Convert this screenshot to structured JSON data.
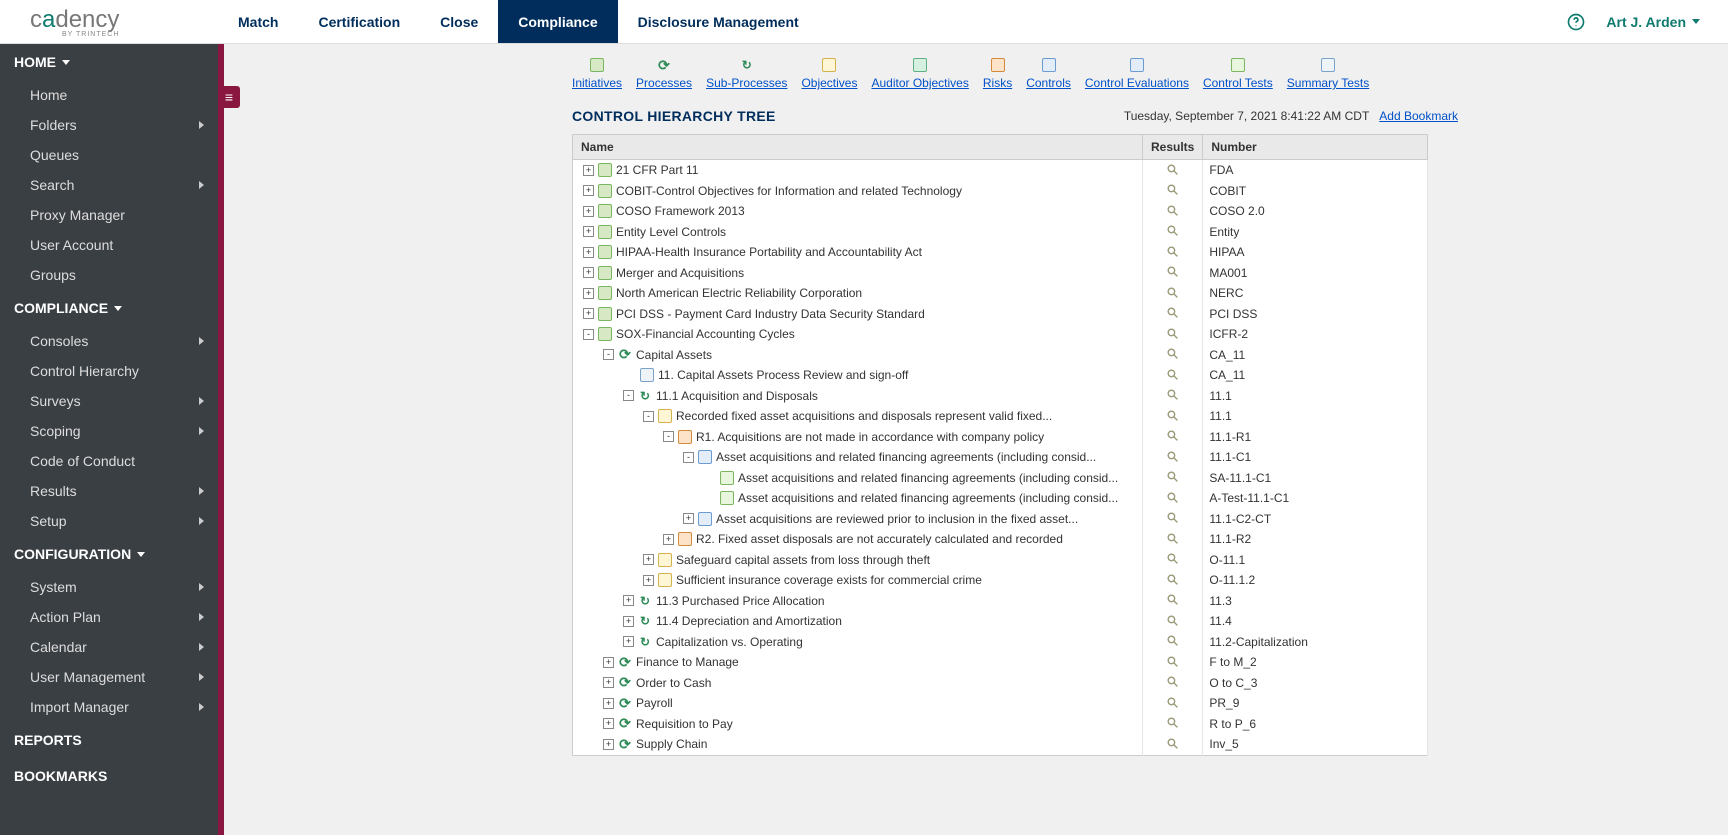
{
  "brand": {
    "name": "cadency",
    "byline": "BY TRINTECH"
  },
  "topnav": {
    "tabs": [
      "Match",
      "Certification",
      "Close",
      "Compliance",
      "Disclosure Management"
    ],
    "active_index": 3,
    "user_name": "Art J. Arden"
  },
  "sidebar": {
    "sections": [
      {
        "title": "HOME",
        "expanded": true,
        "items": [
          {
            "label": "Home",
            "chev": false
          },
          {
            "label": "Folders",
            "chev": true
          },
          {
            "label": "Queues",
            "chev": false
          },
          {
            "label": "Search",
            "chev": true
          },
          {
            "label": "Proxy Manager",
            "chev": false
          },
          {
            "label": "User Account",
            "chev": false
          },
          {
            "label": "Groups",
            "chev": false
          }
        ]
      },
      {
        "title": "COMPLIANCE",
        "expanded": true,
        "items": [
          {
            "label": "Consoles",
            "chev": true
          },
          {
            "label": "Control Hierarchy",
            "chev": false
          },
          {
            "label": "Surveys",
            "chev": true
          },
          {
            "label": "Scoping",
            "chev": true
          },
          {
            "label": "Code of Conduct",
            "chev": false
          },
          {
            "label": "Results",
            "chev": true
          },
          {
            "label": "Setup",
            "chev": true
          }
        ]
      },
      {
        "title": "CONFIGURATION",
        "expanded": true,
        "items": [
          {
            "label": "System",
            "chev": true
          },
          {
            "label": "Action Plan",
            "chev": true
          },
          {
            "label": "Calendar",
            "chev": true
          },
          {
            "label": "User Management",
            "chev": true
          },
          {
            "label": "Import Manager",
            "chev": true
          }
        ]
      },
      {
        "title": "REPORTS",
        "expanded": false,
        "items": []
      },
      {
        "title": "BOOKMARKS",
        "expanded": false,
        "items": []
      }
    ]
  },
  "toolbar": [
    {
      "label": "Initiatives",
      "icon": "init"
    },
    {
      "label": "Processes",
      "icon": "proc"
    },
    {
      "label": "Sub-Processes",
      "icon": "sub"
    },
    {
      "label": "Objectives",
      "icon": "obj"
    },
    {
      "label": "Auditor Objectives",
      "icon": "audobj"
    },
    {
      "label": "Risks",
      "icon": "risk"
    },
    {
      "label": "Controls",
      "icon": "ctrl"
    },
    {
      "label": "Control Evaluations",
      "icon": "ctrl"
    },
    {
      "label": "Control Tests",
      "icon": "test"
    },
    {
      "label": "Summary Tests",
      "icon": "doc"
    }
  ],
  "page": {
    "title": "CONTROL HIERARCHY TREE",
    "timestamp": "Tuesday, September 7, 2021 8:41:22 AM CDT",
    "bookmark_label": "Add Bookmark"
  },
  "columns": {
    "name": "Name",
    "results": "Results",
    "number": "Number"
  },
  "rows": [
    {
      "depth": 0,
      "toggle": "+",
      "icon": "init",
      "name": "21 CFR Part 11",
      "number": "FDA"
    },
    {
      "depth": 0,
      "toggle": "+",
      "icon": "init",
      "name": "COBIT-Control Objectives for Information and related Technology",
      "number": "COBIT"
    },
    {
      "depth": 0,
      "toggle": "+",
      "icon": "init",
      "name": "COSO Framework 2013",
      "number": "COSO 2.0"
    },
    {
      "depth": 0,
      "toggle": "+",
      "icon": "init",
      "name": "Entity Level Controls",
      "number": "Entity"
    },
    {
      "depth": 0,
      "toggle": "+",
      "icon": "init",
      "name": "HIPAA-Health Insurance Portability and Accountability Act",
      "number": "HIPAA"
    },
    {
      "depth": 0,
      "toggle": "+",
      "icon": "init",
      "name": "Merger and Acquisitions",
      "number": "MA001"
    },
    {
      "depth": 0,
      "toggle": "+",
      "icon": "init",
      "name": "North American Electric Reliability Corporation",
      "number": "NERC"
    },
    {
      "depth": 0,
      "toggle": "+",
      "icon": "init",
      "name": "PCI DSS - Payment Card Industry Data Security Standard",
      "number": "PCI DSS"
    },
    {
      "depth": 0,
      "toggle": "-",
      "icon": "init",
      "name": "SOX-Financial Accounting Cycles",
      "number": "ICFR-2"
    },
    {
      "depth": 1,
      "toggle": "-",
      "icon": "proc",
      "name": "Capital Assets",
      "number": "CA_11"
    },
    {
      "depth": 2,
      "toggle": "",
      "icon": "doc",
      "name": "11. Capital Assets Process Review and sign-off",
      "number": "CA_11"
    },
    {
      "depth": 2,
      "toggle": "-",
      "icon": "sub",
      "name": "11.1 Acquisition and Disposals",
      "number": "11.1"
    },
    {
      "depth": 3,
      "toggle": "-",
      "icon": "obj",
      "name": "Recorded fixed asset acquisitions and disposals represent valid fixed...",
      "number": "11.1"
    },
    {
      "depth": 4,
      "toggle": "-",
      "icon": "risk",
      "name": "R1. Acquisitions are not made in accordance with company policy",
      "number": "11.1-R1"
    },
    {
      "depth": 5,
      "toggle": "-",
      "icon": "ctrl",
      "name": "Asset acquisitions and related financing agreements (including consid...",
      "number": "11.1-C1"
    },
    {
      "depth": 6,
      "toggle": "",
      "icon": "test",
      "name": "Asset acquisitions and related financing agreements (including consid...",
      "number": "SA-11.1-C1"
    },
    {
      "depth": 6,
      "toggle": "",
      "icon": "test",
      "name": "Asset acquisitions and related financing agreements (including consid...",
      "number": "A-Test-11.1-C1"
    },
    {
      "depth": 5,
      "toggle": "+",
      "icon": "ctrl",
      "name": "Asset acquisitions are reviewed prior to inclusion in the fixed asset...",
      "number": "11.1-C2-CT"
    },
    {
      "depth": 4,
      "toggle": "+",
      "icon": "risk",
      "name": "R2. Fixed asset disposals are not accurately calculated and recorded",
      "number": "11.1-R2"
    },
    {
      "depth": 3,
      "toggle": "+",
      "icon": "obj",
      "name": "Safeguard capital assets from loss through theft",
      "number": "O-11.1"
    },
    {
      "depth": 3,
      "toggle": "+",
      "icon": "obj",
      "name": "Sufficient insurance coverage exists for commercial crime",
      "number": "O-11.1.2"
    },
    {
      "depth": 2,
      "toggle": "+",
      "icon": "sub",
      "name": "11.3 Purchased Price Allocation",
      "number": "11.3"
    },
    {
      "depth": 2,
      "toggle": "+",
      "icon": "sub",
      "name": "11.4 Depreciation and Amortization",
      "number": "11.4"
    },
    {
      "depth": 2,
      "toggle": "+",
      "icon": "sub",
      "name": "Capitalization vs. Operating",
      "number": "11.2-Capitalization"
    },
    {
      "depth": 1,
      "toggle": "+",
      "icon": "proc",
      "name": "Finance to Manage",
      "number": "F to M_2"
    },
    {
      "depth": 1,
      "toggle": "+",
      "icon": "proc",
      "name": "Order to Cash",
      "number": "O to C_3"
    },
    {
      "depth": 1,
      "toggle": "+",
      "icon": "proc",
      "name": "Payroll",
      "number": "PR_9"
    },
    {
      "depth": 1,
      "toggle": "+",
      "icon": "proc",
      "name": "Requisition to Pay",
      "number": "R to P_6"
    },
    {
      "depth": 1,
      "toggle": "+",
      "icon": "proc",
      "name": "Supply Chain",
      "number": "Inv_5"
    }
  ],
  "colors": {
    "accent": "#0f7a6e",
    "nav_dark": "#002d5b",
    "sidebar_bg": "#3a3f44",
    "sidebar_accent": "#8a1740",
    "link": "#0050c8",
    "main_bg": "#f0f0f0"
  }
}
